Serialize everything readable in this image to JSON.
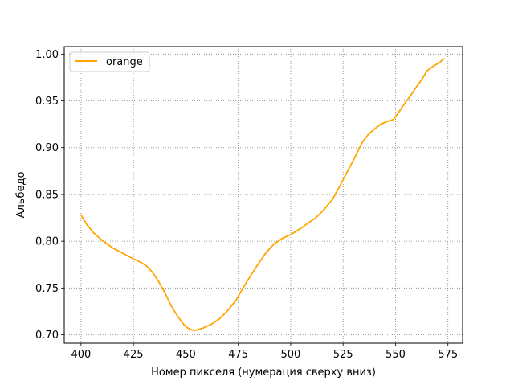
{
  "chart_data": {
    "type": "line",
    "title": "",
    "xlabel": "Номер пикселя (нумерация сверху вниз)",
    "ylabel": "Альбедо",
    "xlim": [
      392,
      582
    ],
    "ylim": [
      0.691,
      1.008
    ],
    "x_ticks": [
      400,
      425,
      450,
      475,
      500,
      525,
      550,
      575
    ],
    "y_ticks": [
      0.7,
      0.75,
      0.8,
      0.85,
      0.9,
      0.95,
      1.0
    ],
    "grid": true,
    "legend": {
      "position": "top-left",
      "entries": [
        "orange"
      ]
    },
    "series": [
      {
        "name": "orange",
        "color": "#ffa500",
        "x": [
          400,
          403,
          406,
          410,
          415,
          420,
          425,
          428,
          431,
          434,
          437,
          440,
          443,
          446,
          449,
          451,
          453,
          455,
          458,
          462,
          466,
          470,
          474,
          477,
          480,
          484,
          488,
          492,
          496,
          500,
          505,
          508,
          512,
          516,
          520,
          523,
          526,
          530,
          534,
          537,
          540,
          543,
          546,
          549,
          551,
          554,
          557,
          560,
          562,
          565,
          568,
          571,
          573
        ],
        "y": [
          0.828,
          0.817,
          0.809,
          0.801,
          0.793,
          0.787,
          0.781,
          0.778,
          0.774,
          0.767,
          0.757,
          0.745,
          0.731,
          0.72,
          0.711,
          0.707,
          0.705,
          0.705,
          0.707,
          0.711,
          0.717,
          0.726,
          0.737,
          0.749,
          0.76,
          0.774,
          0.787,
          0.797,
          0.803,
          0.807,
          0.814,
          0.819,
          0.825,
          0.834,
          0.845,
          0.857,
          0.87,
          0.887,
          0.905,
          0.914,
          0.92,
          0.925,
          0.928,
          0.93,
          0.936,
          0.946,
          0.955,
          0.965,
          0.971,
          0.982,
          0.987,
          0.991,
          0.995
        ]
      }
    ]
  }
}
